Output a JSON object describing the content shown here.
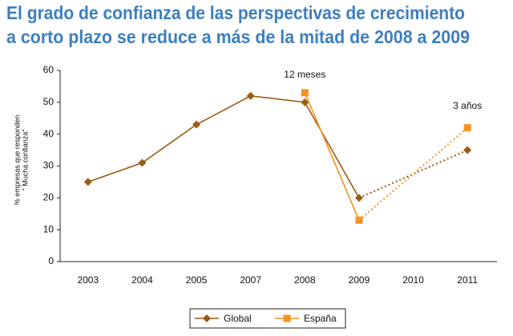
{
  "chart_data": {
    "type": "line",
    "title": [
      "El grado de confianza de las perspectivas de crecimiento",
      "a corto plazo se reduce a más de la mitad de 2008 a 2009"
    ],
    "y_label": [
      "% empresas que responden",
      "\" Mucha confianza\""
    ],
    "categories": [
      "2003",
      "2004",
      "2005",
      "2007",
      "2008",
      "2009",
      "2010",
      "2011"
    ],
    "series": [
      {
        "name": "Global",
        "color": "#9b5a14",
        "marker": "diamond",
        "values": [
          25,
          31,
          43,
          52,
          50,
          20,
          null,
          35
        ]
      },
      {
        "name": "España",
        "color": "#f39320",
        "marker": "square",
        "values": [
          null,
          null,
          null,
          null,
          53,
          13,
          null,
          42
        ]
      }
    ],
    "annotations": [
      "12 meses",
      "3 años"
    ],
    "ylim": [
      0,
      60
    ],
    "yticks": [
      0,
      10,
      20,
      30,
      40,
      50,
      60
    ],
    "legend": "bottom"
  }
}
